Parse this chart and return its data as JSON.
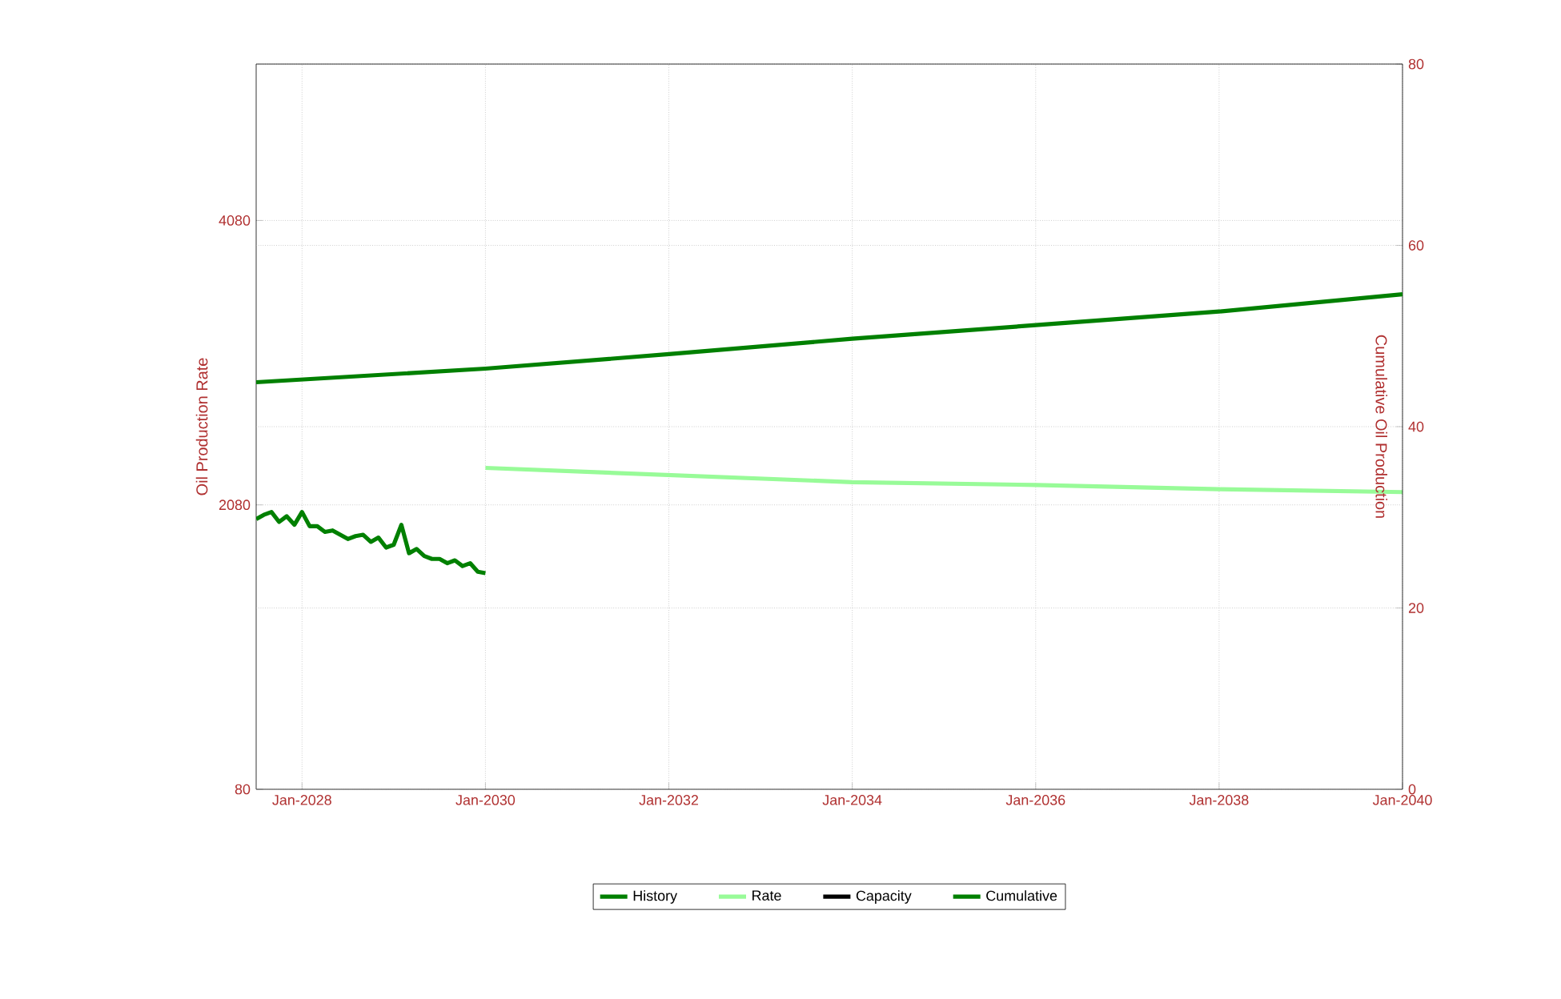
{
  "chart_data": {
    "type": "line",
    "ylabel": "Oil Production Rate",
    "y2label": "Cumulative Oil Production",
    "xlim": [
      "2027-07",
      "2040-01"
    ],
    "ylim": [
      80,
      5180
    ],
    "y2lim": [
      0,
      80
    ],
    "xticks": [
      {
        "value": "2028-01",
        "label": "Jan-2028"
      },
      {
        "value": "2030-01",
        "label": "Jan-2030"
      },
      {
        "value": "2032-01",
        "label": "Jan-2032"
      },
      {
        "value": "2034-01",
        "label": "Jan-2034"
      },
      {
        "value": "2036-01",
        "label": "Jan-2036"
      },
      {
        "value": "2038-01",
        "label": "Jan-2038"
      },
      {
        "value": "2040-01",
        "label": "Jan-2040"
      }
    ],
    "yticks": [
      80,
      2080,
      4080
    ],
    "y2ticks": [
      0,
      20,
      40,
      60,
      80
    ],
    "grid": true,
    "legend": "bottom",
    "series": [
      {
        "name": "History",
        "color": "#008000",
        "x": [
          "2027-07",
          "2027-08",
          "2027-09",
          "2027-10",
          "2027-11",
          "2027-12",
          "2028-01",
          "2028-02",
          "2028-03",
          "2028-04",
          "2028-05",
          "2028-06",
          "2028-07",
          "2028-08",
          "2028-09",
          "2028-10",
          "2028-11",
          "2028-12",
          "2029-01",
          "2029-02",
          "2029-03",
          "2029-04",
          "2029-05",
          "2029-06",
          "2029-07",
          "2029-08",
          "2029-09",
          "2029-10",
          "2029-11",
          "2029-12",
          "2030-01"
        ],
        "values": [
          1980,
          2010,
          2030,
          1960,
          2000,
          1940,
          2030,
          1930,
          1930,
          1890,
          1900,
          1870,
          1840,
          1860,
          1870,
          1820,
          1850,
          1780,
          1800,
          1940,
          1740,
          1770,
          1720,
          1700,
          1700,
          1670,
          1690,
          1650,
          1670,
          1610,
          1600
        ]
      },
      {
        "name": "Rate",
        "color": "#98fb98",
        "x": [
          "2030-01",
          "2032-01",
          "2034-01",
          "2036-01",
          "2038-01",
          "2040-01"
        ],
        "values": [
          2340,
          2290,
          2240,
          2220,
          2190,
          2170
        ]
      },
      {
        "name": "Capacity",
        "color": "#000000"
      },
      {
        "name": "Cumulative",
        "color": "#008000",
        "axis": "y2",
        "x": [
          "2027-07",
          "2030-01",
          "2032-01",
          "2034-01",
          "2036-01",
          "2038-01",
          "2040-01"
        ],
        "values": [
          44.9,
          46.4,
          48.0,
          49.7,
          51.2,
          52.7,
          54.6
        ]
      }
    ]
  }
}
